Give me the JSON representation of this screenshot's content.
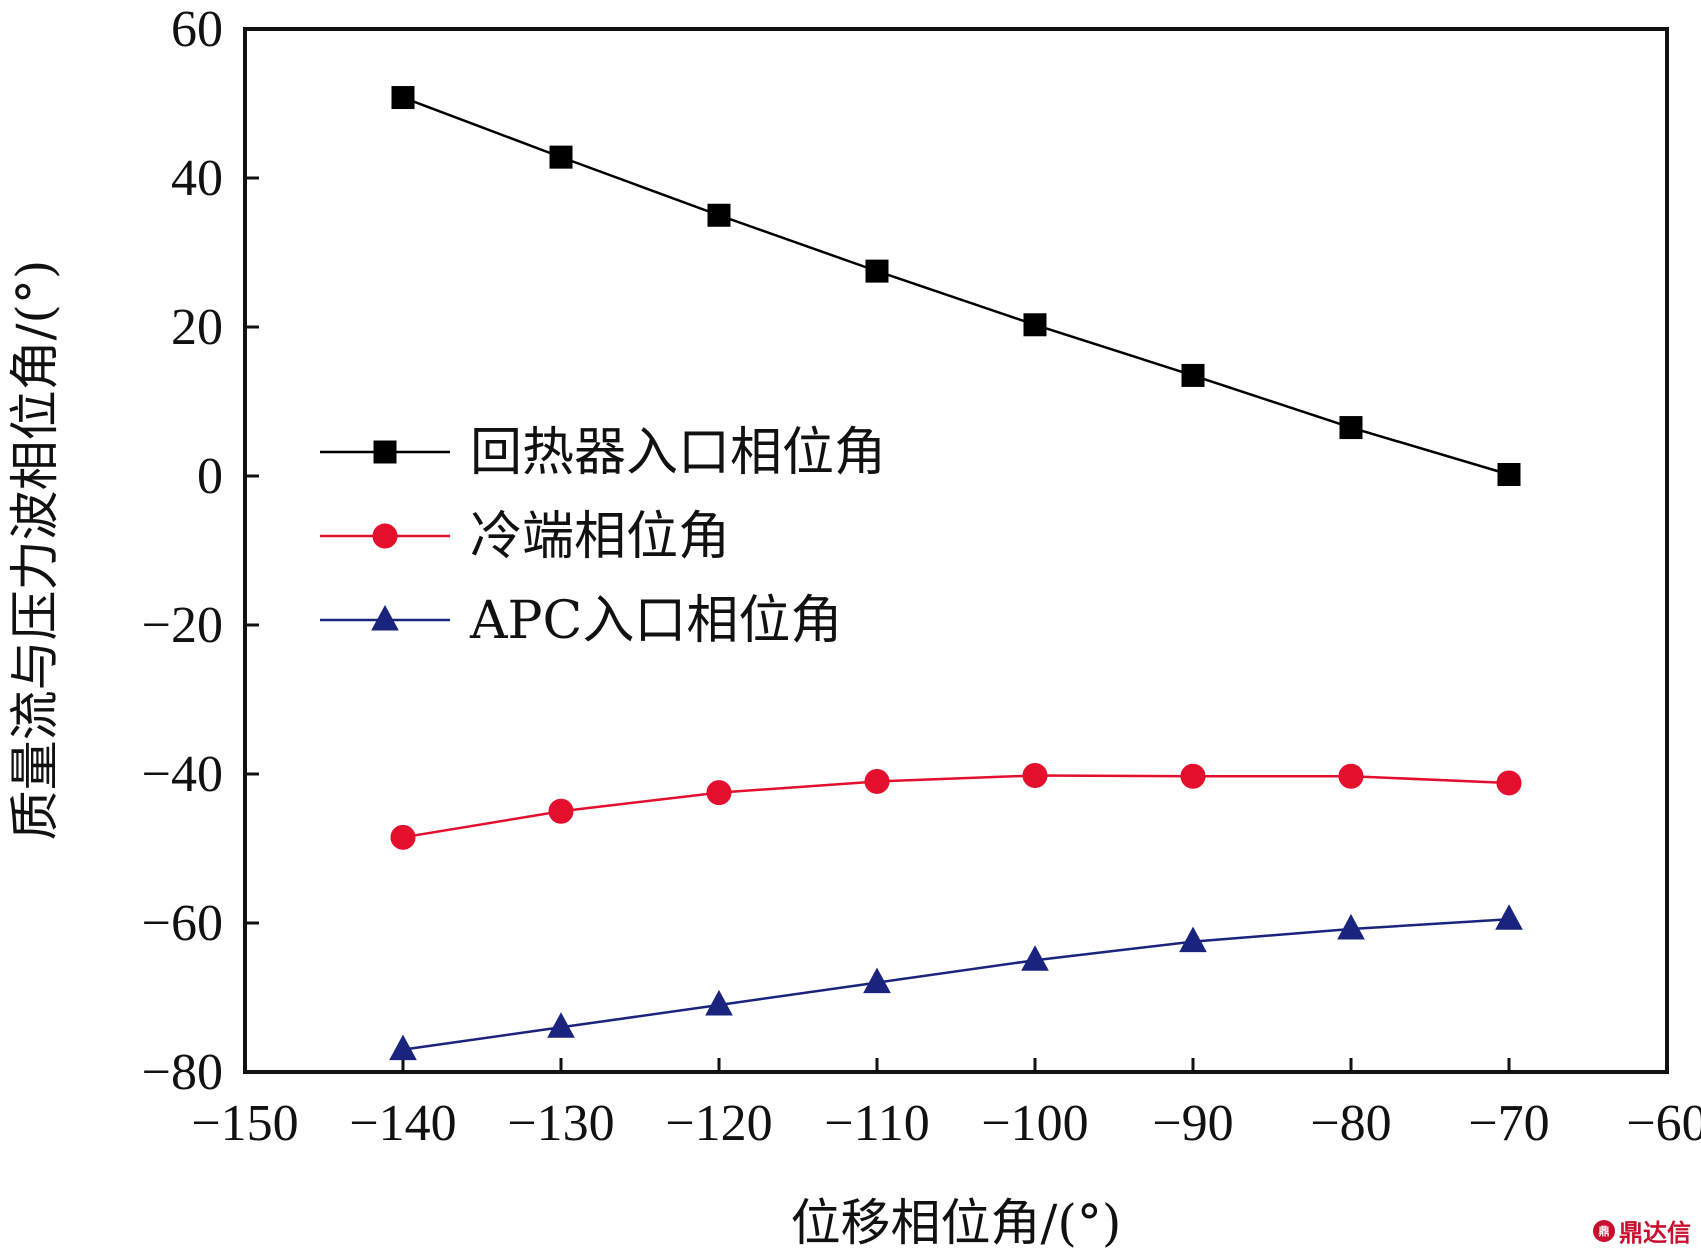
{
  "chart_data": {
    "type": "line",
    "xlabel": "位移相位角/(°)",
    "ylabel": "质量流与压力波相位角/(°)",
    "xlim": [
      -150,
      -60
    ],
    "ylim": [
      -80,
      60
    ],
    "xticks": [
      -150,
      -140,
      -130,
      -120,
      -110,
      -100,
      -90,
      -80,
      -70,
      -60
    ],
    "yticks": [
      -80,
      -60,
      -40,
      -20,
      0,
      20,
      40,
      60
    ],
    "x": [
      -140,
      -130,
      -120,
      -110,
      -100,
      -90,
      -80,
      -70
    ],
    "grid": false,
    "legend_position": "center-left",
    "series": [
      {
        "name": "回热器入口相位角",
        "marker": "square",
        "color": "#000000",
        "values": [
          50.8,
          42.8,
          35.0,
          27.5,
          20.3,
          13.5,
          6.5,
          0.2
        ]
      },
      {
        "name": "冷端相位角",
        "marker": "circle",
        "color": "#e30f2d",
        "values": [
          -48.5,
          -45.0,
          -42.5,
          -41.0,
          -40.2,
          -40.3,
          -40.3,
          -41.2
        ]
      },
      {
        "name": "APC入口相位角",
        "marker": "triangle",
        "color": "#1a237e",
        "values": [
          -77.0,
          -74.0,
          -71.0,
          -68.0,
          -65.0,
          -62.5,
          -60.8,
          -59.5
        ]
      }
    ]
  },
  "watermark": {
    "logo": "鼎",
    "text": "鼎达信"
  }
}
